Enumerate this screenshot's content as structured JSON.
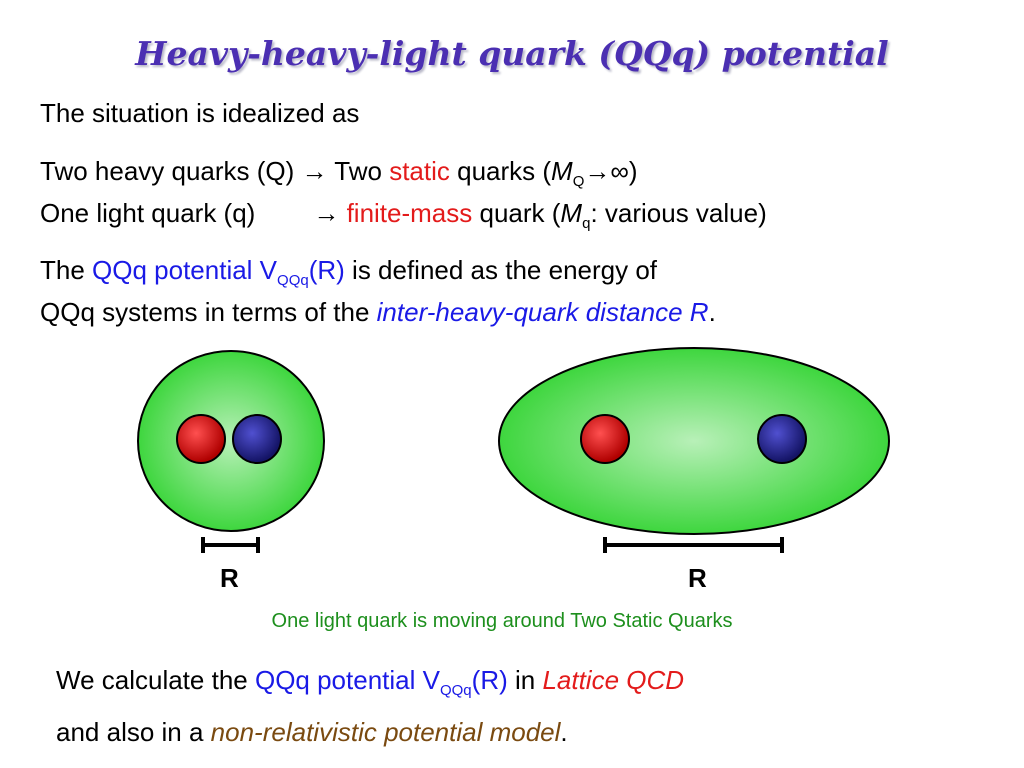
{
  "title": "Heavy-heavy-light quark (QQq) potential",
  "intro": "The situation is idealized as",
  "heavy_line": {
    "prefix": "Two heavy quarks (Q) → Two ",
    "highlight": "static",
    "middle": " quarks (",
    "mass_symbol": "M",
    "mass_sub": "Q",
    "suffix": "→∞)"
  },
  "light_line": {
    "prefix": "One light quark (q)",
    "arrow": "→ ",
    "highlight": "finite-mass",
    "middle": " quark (",
    "mass_symbol": "M",
    "mass_sub": "q",
    "suffix": ": various value)"
  },
  "definition": {
    "line1_prefix": "The ",
    "potential_label": "QQq potential V",
    "potential_sub": "QQq",
    "potential_arg": "(R)",
    "line1_suffix": " is defined as the energy of",
    "line2_prefix": "QQq systems in terms of the ",
    "line2_highlight": "inter-heavy-quark distance R",
    "line2_suffix": "."
  },
  "figure": {
    "left_label": "R",
    "right_label": "R",
    "caption": "One light quark is moving around Two Static Quarks",
    "colors": {
      "cloud": "#3ed63e",
      "cloud_center": "#b8f0b8",
      "red_quark": "#d11111",
      "blue_quark": "#1f1f8a"
    }
  },
  "conclusion": {
    "line1_prefix": "We calculate the ",
    "potential_label": "QQq potential V",
    "potential_sub": "QQq",
    "potential_arg": "(R)",
    "line1_middle": " in ",
    "line1_highlight": "Lattice QCD",
    "line2_prefix": "and also in a ",
    "line2_highlight": "non-relativistic potential model",
    "line2_suffix": "."
  }
}
